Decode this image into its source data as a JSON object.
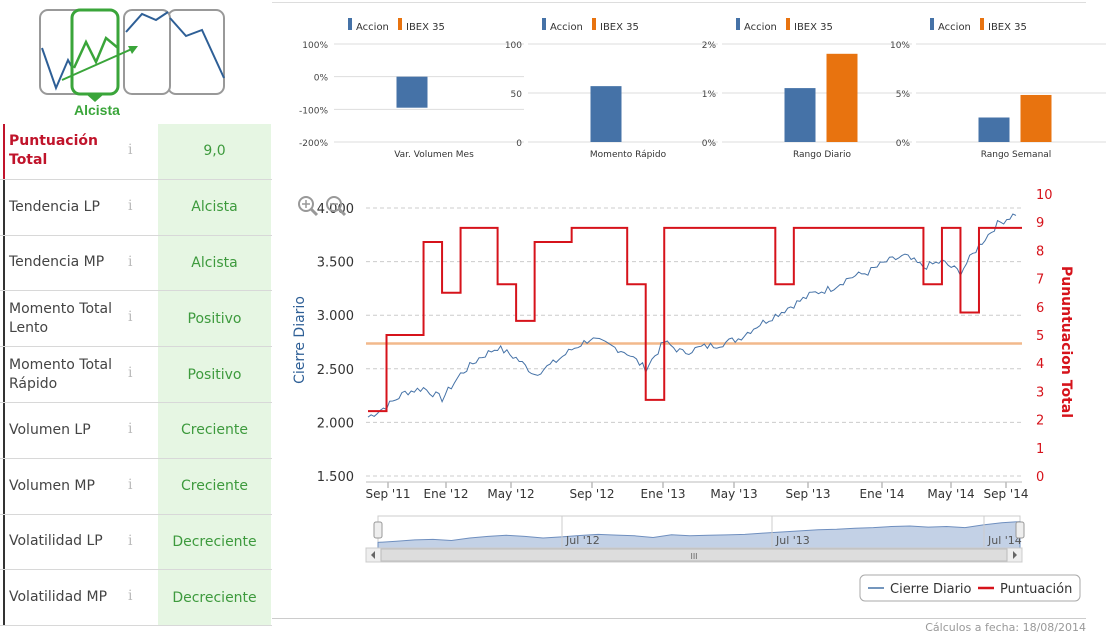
{
  "trend_badge": {
    "label": "Alcista"
  },
  "score_rows": [
    {
      "label": "Puntuación Total",
      "value": "9,0"
    },
    {
      "label": "Tendencia LP",
      "value": "Alcista"
    },
    {
      "label": "Tendencia MP",
      "value": "Alcista"
    },
    {
      "label": "Momento Total Lento",
      "value": "Positivo"
    },
    {
      "label": "Momento Total Rápido",
      "value": "Positivo"
    },
    {
      "label": "Volumen LP",
      "value": "Creciente"
    },
    {
      "label": "Volumen MP",
      "value": "Creciente"
    },
    {
      "label": "Volatilidad LP",
      "value": "Decreciente"
    },
    {
      "label": "Volatilidad MP",
      "value": "Decreciente"
    }
  ],
  "info_icon": "i",
  "footer": "Cálculos a fecha: 18/08/2014",
  "colors": {
    "accion": "#4572a7",
    "ibex": "#e8730f",
    "score": "#d6131b",
    "close": "#4572a7",
    "green": "#3aa53a",
    "red_label": "#c0142b"
  },
  "chart_data": [
    {
      "type": "bar",
      "categories": [
        "Var. Volumen Mes"
      ],
      "series": [
        {
          "name": "Accion",
          "values": [
            -95
          ]
        },
        {
          "name": "IBEX 35",
          "values": [
            null
          ]
        }
      ],
      "yticks": [
        "100%",
        "0%",
        "-100%",
        "-200%"
      ],
      "ylim": [
        -200,
        100
      ]
    },
    {
      "type": "bar",
      "categories": [
        "Momento Rápido"
      ],
      "series": [
        {
          "name": "Accion",
          "values": [
            57
          ]
        },
        {
          "name": "IBEX 35",
          "values": [
            null
          ]
        }
      ],
      "yticks": [
        "100",
        "50",
        "0"
      ],
      "ylim": [
        0,
        100
      ]
    },
    {
      "type": "bar",
      "categories": [
        "Rango Diario"
      ],
      "series": [
        {
          "name": "Accion",
          "values": [
            1.1
          ]
        },
        {
          "name": "IBEX 35",
          "values": [
            1.8
          ]
        }
      ],
      "yticks": [
        "2%",
        "1%",
        "0%"
      ],
      "ylim": [
        0,
        2
      ]
    },
    {
      "type": "bar",
      "categories": [
        "Rango Semanal"
      ],
      "series": [
        {
          "name": "Accion",
          "values": [
            2.5
          ]
        },
        {
          "name": "IBEX 35",
          "values": [
            4.8
          ]
        }
      ],
      "yticks": [
        "10%",
        "5%",
        "0%"
      ],
      "ylim": [
        0,
        10
      ]
    },
    {
      "type": "line",
      "ylabel_left": "Cierre Diario",
      "ylabel_right": "Pununtuacion Total",
      "yticks_left": [
        "4.000",
        "3.500",
        "3.000",
        "2.500",
        "2.000",
        "1.500"
      ],
      "ylim_left": [
        1500,
        4000
      ],
      "yticks_right": [
        "10",
        "9",
        "8",
        "7",
        "6",
        "5",
        "4",
        "3",
        "2",
        "1",
        "0"
      ],
      "ylim_right": [
        0,
        10
      ],
      "xticks": [
        "Sep '11",
        "Ene '12",
        "May '12",
        "Sep '12",
        "Ene '13",
        "May '13",
        "Sep '13",
        "Ene '14",
        "May '14",
        "Sep '14"
      ],
      "reference_line": 4.7,
      "series": [
        {
          "name": "Cierre Diario",
          "x": [
            "Sep '11",
            "Oct '11",
            "Nov '11",
            "Dic '11",
            "Ene '12",
            "Feb '12",
            "Mar '12",
            "Abr '12",
            "May '12",
            "Jun '12",
            "Jul '12",
            "Ago '12",
            "Sep '12",
            "Oct '12",
            "Nov '12",
            "Dic '12",
            "Ene '13",
            "Feb '13",
            "Mar '13",
            "Abr '13",
            "May '13",
            "Jun '13",
            "Jul '13",
            "Ago '13",
            "Sep '13",
            "Oct '13",
            "Nov '13",
            "Dic '13",
            "Ene '14",
            "Feb '14",
            "Mar '14",
            "Abr '14",
            "May '14",
            "Jun '14",
            "Jul '14",
            "Ago '14"
          ],
          "values": [
            2050,
            2150,
            2280,
            2320,
            2220,
            2450,
            2600,
            2700,
            2600,
            2450,
            2550,
            2680,
            2780,
            2720,
            2650,
            2500,
            2750,
            2650,
            2700,
            2730,
            2780,
            2900,
            3000,
            3100,
            3200,
            3250,
            3350,
            3400,
            3500,
            3550,
            3450,
            3500,
            3400,
            3650,
            3850,
            3950
          ]
        },
        {
          "name": "Puntuación",
          "x": [
            "Sep '11",
            "Oct '11",
            "Nov '11",
            "Dic '11",
            "Ene '12",
            "Feb '12",
            "Mar '12",
            "Abr '12",
            "May '12",
            "Jun '12",
            "Jul '12",
            "Ago '12",
            "Sep '12",
            "Oct '12",
            "Nov '12",
            "Dic '12",
            "Ene '13",
            "Feb '13",
            "Mar '13",
            "Abr '13",
            "May '13",
            "Jun '13",
            "Jul '13",
            "Ago '13",
            "Sep '13",
            "Oct '13",
            "Nov '13",
            "Dic '13",
            "Ene '14",
            "Feb '14",
            "Mar '14",
            "Abr '14",
            "May '14",
            "Jun '14",
            "Jul '14",
            "Ago '14"
          ],
          "values": [
            2.3,
            5,
            5,
            8.3,
            6.5,
            8.8,
            8.8,
            6.8,
            5.5,
            8.3,
            8.3,
            8.8,
            8.8,
            8.8,
            6.8,
            2.7,
            8.8,
            8.8,
            8.8,
            8.8,
            8.8,
            8.8,
            6.8,
            8.8,
            8.8,
            8.8,
            8.8,
            8.8,
            8.8,
            8.8,
            6.8,
            8.8,
            5.8,
            8.8,
            8.8,
            8.8
          ]
        }
      ],
      "navigator_ticks": [
        "Jul '12",
        "Jul '13",
        "Jul '14"
      ],
      "navigator_handle": "III"
    }
  ]
}
